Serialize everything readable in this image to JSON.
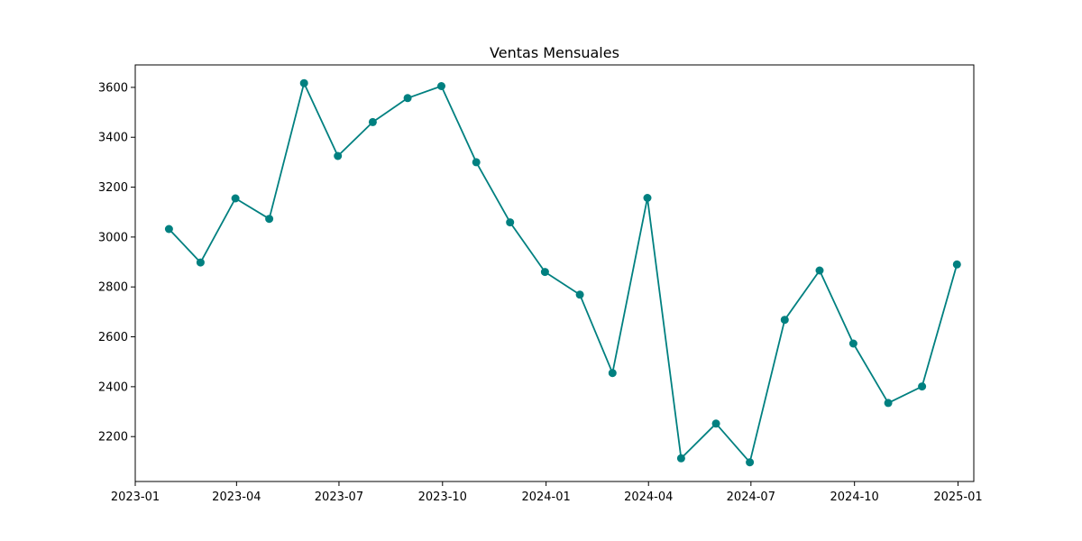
{
  "chart_data": {
    "type": "line",
    "title": "Ventas Mensuales",
    "xlabel": "",
    "ylabel": "",
    "x": [
      "2023-01-31",
      "2023-02-28",
      "2023-03-31",
      "2023-04-30",
      "2023-05-31",
      "2023-06-30",
      "2023-07-31",
      "2023-08-31",
      "2023-09-30",
      "2023-10-31",
      "2023-11-30",
      "2023-12-31",
      "2024-01-31",
      "2024-02-29",
      "2024-03-31",
      "2024-04-30",
      "2024-05-31",
      "2024-06-30",
      "2024-07-31",
      "2024-08-31",
      "2024-09-30",
      "2024-10-31",
      "2024-11-30",
      "2024-12-31"
    ],
    "series": [
      {
        "values": [
          3032,
          2898,
          3155,
          3073,
          3617,
          3325,
          3461,
          3557,
          3605,
          3300,
          3059,
          2860,
          2769,
          2455,
          3157,
          2113,
          2252,
          2097,
          2668,
          2866,
          2573,
          2335,
          2401,
          2890
        ],
        "color": "#008080"
      }
    ],
    "x_ticks": [
      "2023-01",
      "2023-04",
      "2023-07",
      "2023-10",
      "2024-01",
      "2024-04",
      "2024-07",
      "2024-10",
      "2025-01"
    ],
    "x_range": [
      "2023-01-01",
      "2025-01-15"
    ],
    "y_ticks": [
      2200,
      2400,
      2600,
      2800,
      3000,
      3200,
      3400,
      3600
    ],
    "ylim": [
      2020,
      3690
    ],
    "grid": false,
    "legend": "none",
    "marker": "circle"
  }
}
